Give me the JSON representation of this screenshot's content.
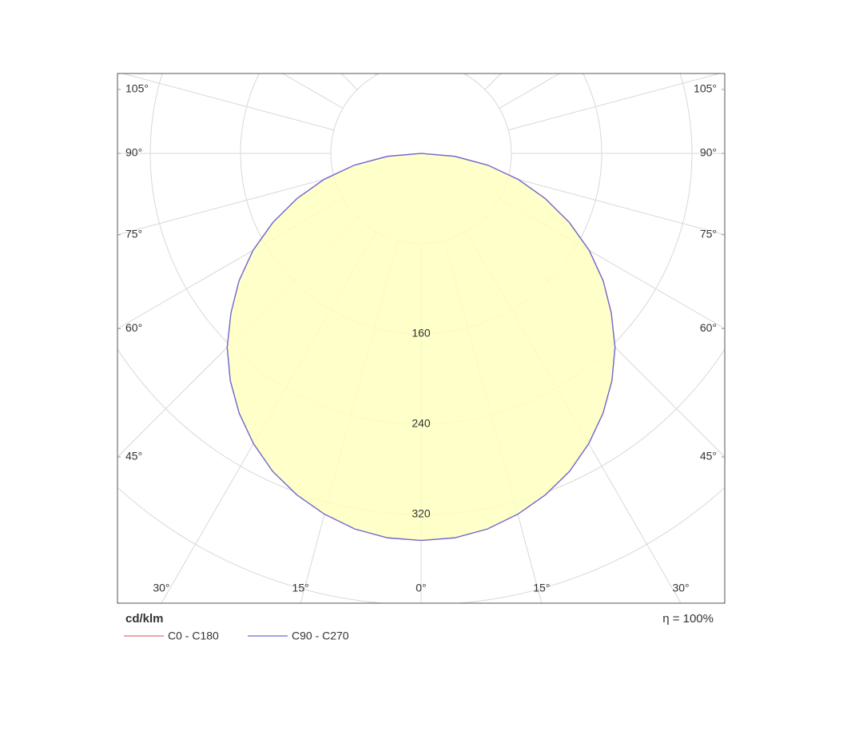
{
  "chart_data": {
    "type": "polar",
    "unit_label": "cd/klm",
    "efficiency_label": "η = 100%",
    "x": [
      -90,
      -85,
      -80,
      -75,
      -70,
      -65,
      -60,
      -55,
      -50,
      -45,
      -40,
      -35,
      -30,
      -25,
      -20,
      -15,
      -10,
      -5,
      0,
      5,
      10,
      15,
      20,
      25,
      30,
      35,
      40,
      45,
      50,
      55,
      60,
      65,
      70,
      75,
      80,
      85,
      90
    ],
    "series": [
      {
        "name": "C0 - C180",
        "color": "#e07070",
        "values": [
          0,
          30,
          60,
          89,
          117,
          145,
          172,
          197,
          220,
          243,
          263,
          281,
          297,
          311,
          322,
          331,
          338,
          342,
          343,
          342,
          338,
          331,
          322,
          311,
          297,
          281,
          263,
          243,
          220,
          197,
          172,
          145,
          117,
          89,
          60,
          30,
          0
        ]
      },
      {
        "name": "C90 - C270",
        "color": "#6a6ad8",
        "values": [
          0,
          30,
          60,
          89,
          117,
          145,
          172,
          197,
          220,
          243,
          263,
          281,
          297,
          311,
          322,
          331,
          338,
          342,
          343,
          342,
          338,
          331,
          322,
          311,
          297,
          281,
          263,
          243,
          220,
          197,
          172,
          145,
          117,
          89,
          60,
          30,
          0
        ]
      }
    ],
    "fill_color": "#ffffc0",
    "rlim": [
      0,
      480
    ],
    "grid_rings": [
      80,
      160,
      240,
      320,
      400,
      480
    ],
    "rticks": [
      160,
      240,
      320
    ],
    "angle_grid": [
      0,
      15,
      30,
      45,
      60,
      75,
      90,
      105,
      120,
      135,
      150,
      165,
      180
    ],
    "left_ticks": [
      {
        "value": 105,
        "label": "105°"
      },
      {
        "value": 90,
        "label": "90°"
      },
      {
        "value": 75,
        "label": "75°"
      },
      {
        "value": 60,
        "label": "60°"
      },
      {
        "value": 45,
        "label": "45°"
      }
    ],
    "right_ticks": [
      {
        "value": 105,
        "label": "105°"
      },
      {
        "value": 90,
        "label": "90°"
      },
      {
        "value": 75,
        "label": "75°"
      },
      {
        "value": 60,
        "label": "60°"
      },
      {
        "value": 45,
        "label": "45°"
      }
    ],
    "bottom_ticks": [
      {
        "value": -30,
        "label": "30°"
      },
      {
        "value": -15,
        "label": "15°"
      },
      {
        "value": 0,
        "label": "0°"
      },
      {
        "value": 15,
        "label": "15°"
      },
      {
        "value": 30,
        "label": "30°"
      }
    ]
  }
}
